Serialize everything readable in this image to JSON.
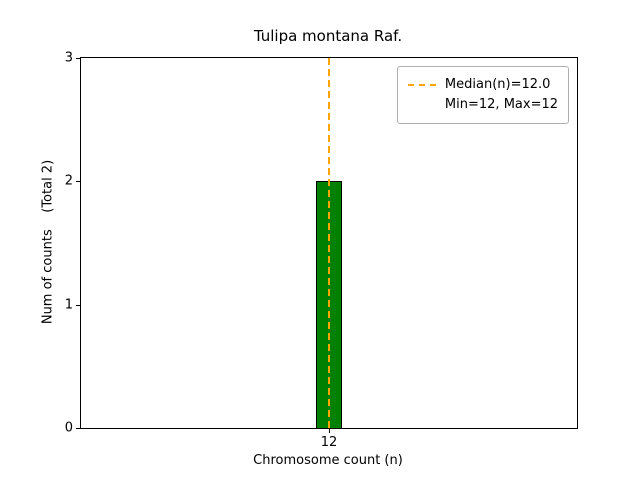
{
  "chart_data": {
    "type": "bar",
    "title": "Tulipa montana Raf.",
    "xlabel": "Chromosome count (n)",
    "ylabel": "Num of counts    (Total 2)",
    "categories": [
      "12"
    ],
    "values": [
      2
    ],
    "total": 2,
    "ylim": [
      0,
      3
    ],
    "yticks": [
      0,
      1,
      2,
      3
    ],
    "grid": false,
    "legend_position": "upper right",
    "legend": [
      "Median(n)=12.0",
      "Min=12, Max=12"
    ],
    "median_n": 12.0,
    "min_n": 12,
    "max_n": 12,
    "colors": {
      "bar_fill": "#008000",
      "bar_edge": "#000000",
      "median_line": "#ffa500",
      "axes": "#000000",
      "background": "#ffffff"
    }
  }
}
